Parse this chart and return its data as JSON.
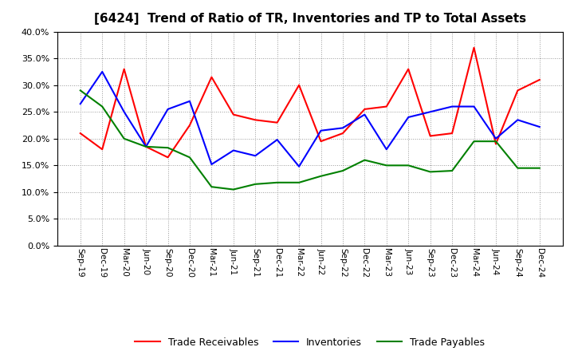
{
  "title": "[6424]  Trend of Ratio of TR, Inventories and TP to Total Assets",
  "x_labels": [
    "Sep-19",
    "Dec-19",
    "Mar-20",
    "Jun-20",
    "Sep-20",
    "Dec-20",
    "Mar-21",
    "Jun-21",
    "Sep-21",
    "Dec-21",
    "Mar-22",
    "Jun-22",
    "Sep-22",
    "Dec-22",
    "Mar-23",
    "Jun-23",
    "Sep-23",
    "Dec-23",
    "Mar-24",
    "Jun-24",
    "Sep-24",
    "Dec-24"
  ],
  "trade_receivables": [
    0.21,
    0.18,
    0.33,
    0.185,
    0.165,
    0.225,
    0.315,
    0.245,
    0.235,
    0.23,
    0.3,
    0.195,
    0.21,
    0.255,
    0.26,
    0.33,
    0.205,
    0.21,
    0.37,
    0.19,
    0.29,
    0.31
  ],
  "inventories": [
    0.265,
    0.325,
    0.25,
    0.185,
    0.255,
    0.27,
    0.152,
    0.178,
    0.168,
    0.198,
    0.148,
    0.215,
    0.22,
    0.245,
    0.18,
    0.24,
    0.25,
    0.26,
    0.26,
    0.2,
    0.235,
    0.222
  ],
  "trade_payables": [
    0.29,
    0.26,
    0.2,
    0.185,
    0.183,
    0.165,
    0.11,
    0.105,
    0.115,
    0.118,
    0.118,
    0.13,
    0.14,
    0.16,
    0.15,
    0.15,
    0.138,
    0.14,
    0.195,
    0.195,
    0.145,
    0.145
  ],
  "tr_color": "#FF0000",
  "inv_color": "#0000FF",
  "tp_color": "#008000",
  "ylim": [
    0.0,
    0.4
  ],
  "yticks": [
    0.0,
    0.05,
    0.1,
    0.15,
    0.2,
    0.25,
    0.3,
    0.35,
    0.4
  ],
  "legend_labels": [
    "Trade Receivables",
    "Inventories",
    "Trade Payables"
  ],
  "background_color": "#FFFFFF"
}
